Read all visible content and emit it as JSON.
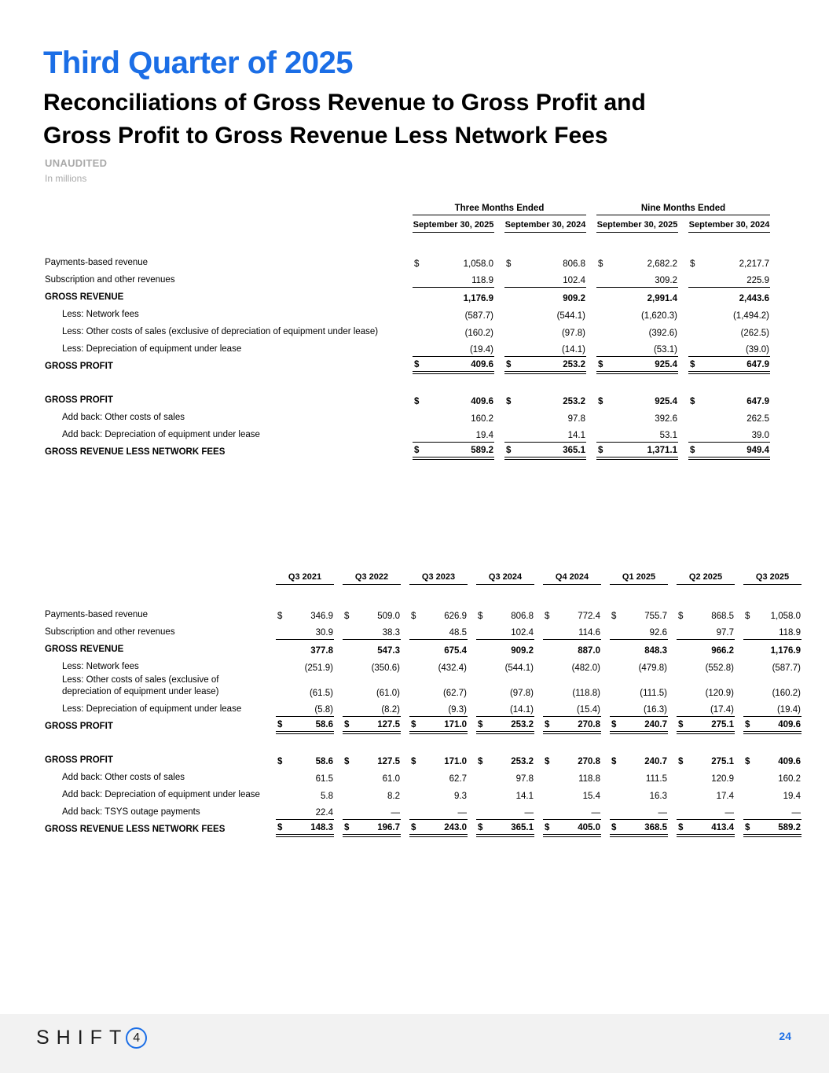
{
  "page": {
    "title": "Third Quarter of 2025",
    "subtitle_line1": "Reconciliations of Gross Revenue to Gross Profit and",
    "subtitle_line2": "Gross Profit to Gross Revenue Less Network Fees",
    "unaudited_label": "UNAUDITED",
    "units_label": "In millions",
    "page_number": "24",
    "accent_blue": "#1b6ee6",
    "footer_bg": "#f2f2f2"
  },
  "logo": {
    "word": "SHIFT",
    "digit": "4"
  },
  "table1": {
    "group_headers": [
      "Three Months Ended",
      "Nine Months Ended"
    ],
    "col_headers": [
      "September 30, 2025",
      "September 30, 2024",
      "September 30, 2025",
      "September 30, 2024"
    ],
    "rows": [
      {
        "label": "Payments-based revenue",
        "indent": false,
        "bold": false,
        "dollar": true,
        "values": [
          "1,058.0",
          "806.8",
          "2,682.2",
          "2,217.7"
        ],
        "rule": null
      },
      {
        "label": "Subscription and other revenues",
        "indent": false,
        "bold": false,
        "dollar": false,
        "values": [
          "118.9",
          "102.4",
          "309.2",
          "225.9"
        ],
        "rule": "single"
      },
      {
        "label": "GROSS REVENUE",
        "indent": false,
        "bold": true,
        "dollar": false,
        "values": [
          "1,176.9",
          "909.2",
          "2,991.4",
          "2,443.6"
        ],
        "rule": null
      },
      {
        "label": "Less: Network fees",
        "indent": true,
        "bold": false,
        "dollar": false,
        "values": [
          "(587.7)",
          "(544.1)",
          "(1,620.3)",
          "(1,494.2)"
        ],
        "rule": null
      },
      {
        "label": "Less: Other costs of sales (exclusive of depreciation of equipment under lease)",
        "indent": true,
        "bold": false,
        "dollar": false,
        "values": [
          "(160.2)",
          "(97.8)",
          "(392.6)",
          "(262.5)"
        ],
        "rule": null
      },
      {
        "label": "Less: Depreciation of equipment under lease",
        "indent": true,
        "bold": false,
        "dollar": false,
        "values": [
          "(19.4)",
          "(14.1)",
          "(53.1)",
          "(39.0)"
        ],
        "rule": "single"
      },
      {
        "label": "GROSS PROFIT",
        "indent": false,
        "bold": true,
        "dollar": true,
        "values": [
          "409.6",
          "253.2",
          "925.4",
          "647.9"
        ],
        "rule": "double"
      },
      {
        "spacer": true
      },
      {
        "label": "GROSS PROFIT",
        "indent": false,
        "bold": true,
        "dollar": true,
        "values": [
          "409.6",
          "253.2",
          "925.4",
          "647.9"
        ],
        "rule": null
      },
      {
        "label": "Add back: Other costs of sales",
        "indent": true,
        "bold": false,
        "dollar": false,
        "values": [
          "160.2",
          "97.8",
          "392.6",
          "262.5"
        ],
        "rule": null
      },
      {
        "label": "Add back: Depreciation of equipment under lease",
        "indent": true,
        "bold": false,
        "dollar": false,
        "values": [
          "19.4",
          "14.1",
          "53.1",
          "39.0"
        ],
        "rule": "single"
      },
      {
        "label": "GROSS REVENUE LESS NETWORK FEES",
        "indent": false,
        "bold": true,
        "dollar": true,
        "values": [
          "589.2",
          "365.1",
          "1,371.1",
          "949.4"
        ],
        "rule": "double"
      }
    ]
  },
  "table2": {
    "col_headers": [
      "Q3 2021",
      "Q3 2022",
      "Q3 2023",
      "Q3 2024",
      "Q4 2024",
      "Q1 2025",
      "Q2 2025",
      "Q3 2025"
    ],
    "rows": [
      {
        "label": "Payments-based revenue",
        "indent": false,
        "bold": false,
        "dollar": true,
        "values": [
          "346.9",
          "509.0",
          "626.9",
          "806.8",
          "772.4",
          "755.7",
          "868.5",
          "1,058.0"
        ],
        "rule": null
      },
      {
        "label": "Subscription and other revenues",
        "indent": false,
        "bold": false,
        "dollar": false,
        "values": [
          "30.9",
          "38.3",
          "48.5",
          "102.4",
          "114.6",
          "92.6",
          "97.7",
          "118.9"
        ],
        "rule": "single"
      },
      {
        "label": "GROSS REVENUE",
        "indent": false,
        "bold": true,
        "dollar": false,
        "values": [
          "377.8",
          "547.3",
          "675.4",
          "909.2",
          "887.0",
          "848.3",
          "966.2",
          "1,176.9"
        ],
        "rule": null
      },
      {
        "label": "Less: Network fees",
        "indent": true,
        "bold": false,
        "dollar": false,
        "values": [
          "(251.9)",
          "(350.6)",
          "(432.4)",
          "(544.1)",
          "(482.0)",
          "(479.8)",
          "(552.8)",
          "(587.7)"
        ],
        "rule": null
      },
      {
        "label": "Less: Other costs of sales (exclusive of depreciation of equipment under lease)",
        "indent": true,
        "bold": false,
        "dollar": false,
        "values": [
          "(61.5)",
          "(61.0)",
          "(62.7)",
          "(97.8)",
          "(118.8)",
          "(111.5)",
          "(120.9)",
          "(160.2)"
        ],
        "rule": null
      },
      {
        "label": "Less: Depreciation of equipment under lease",
        "indent": true,
        "bold": false,
        "dollar": false,
        "values": [
          "(5.8)",
          "(8.2)",
          "(9.3)",
          "(14.1)",
          "(15.4)",
          "(16.3)",
          "(17.4)",
          "(19.4)"
        ],
        "rule": "single"
      },
      {
        "label": "GROSS PROFIT",
        "indent": false,
        "bold": true,
        "dollar": true,
        "values": [
          "58.6",
          "127.5",
          "171.0",
          "253.2",
          "270.8",
          "240.7",
          "275.1",
          "409.6"
        ],
        "rule": "double"
      },
      {
        "spacer": true
      },
      {
        "label": "GROSS PROFIT",
        "indent": false,
        "bold": true,
        "dollar": true,
        "values": [
          "58.6",
          "127.5",
          "171.0",
          "253.2",
          "270.8",
          "240.7",
          "275.1",
          "409.6"
        ],
        "rule": null
      },
      {
        "label": "Add back: Other costs of sales",
        "indent": true,
        "bold": false,
        "dollar": false,
        "values": [
          "61.5",
          "61.0",
          "62.7",
          "97.8",
          "118.8",
          "111.5",
          "120.9",
          "160.2"
        ],
        "rule": null
      },
      {
        "label": "Add back: Depreciation of equipment under lease",
        "indent": true,
        "bold": false,
        "dollar": false,
        "values": [
          "5.8",
          "8.2",
          "9.3",
          "14.1",
          "15.4",
          "16.3",
          "17.4",
          "19.4"
        ],
        "rule": null
      },
      {
        "label": "Add back: TSYS outage payments",
        "indent": true,
        "bold": false,
        "dollar": false,
        "values": [
          "22.4",
          "—",
          "—",
          "—",
          "—",
          "—",
          "—",
          "—"
        ],
        "rule": "single"
      },
      {
        "label": "GROSS REVENUE LESS NETWORK FEES",
        "indent": false,
        "bold": true,
        "dollar": true,
        "values": [
          "148.3",
          "196.7",
          "243.0",
          "365.1",
          "405.0",
          "368.5",
          "413.4",
          "589.2"
        ],
        "rule": "double"
      }
    ]
  }
}
